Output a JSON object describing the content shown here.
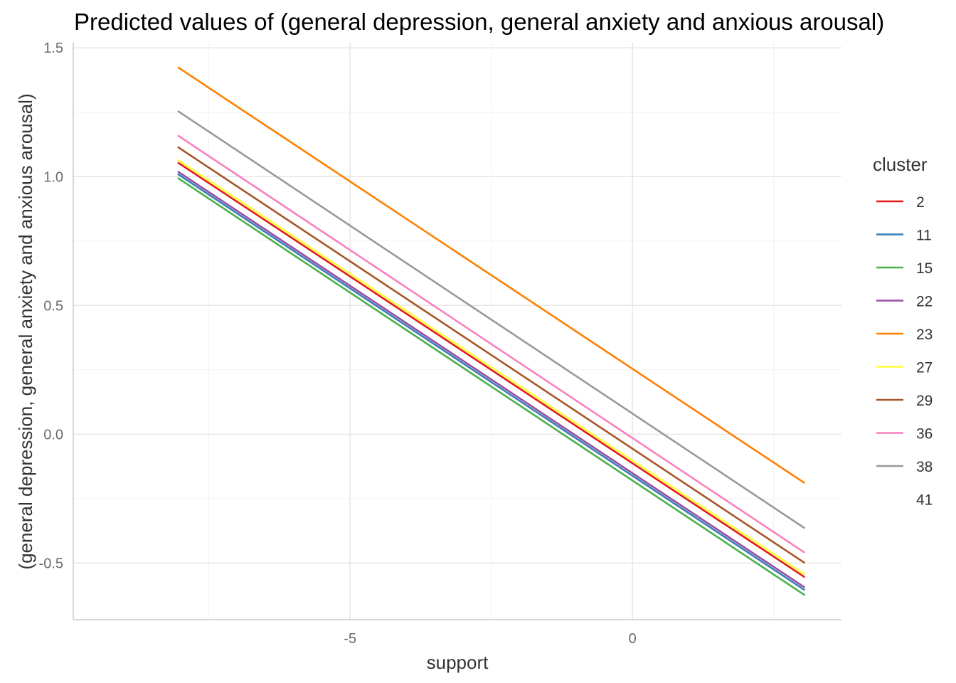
{
  "chart_data": {
    "type": "line",
    "title": "Predicted values of (general depression, general anxiety and anxious arousal)",
    "xlabel": "support",
    "ylabel": "(general depression, general anxiety and anxious arousal)",
    "xlim": [
      -9.9,
      3.7
    ],
    "ylim": [
      -0.72,
      1.52
    ],
    "x_ticks": [
      -5,
      0
    ],
    "x_tick_labels": [
      "-5",
      "0"
    ],
    "x_minor_ticks": [
      -7.5,
      -2.5,
      2.5
    ],
    "y_ticks": [
      -0.5,
      0.0,
      0.5,
      1.0,
      1.5
    ],
    "y_tick_labels": [
      "-0.5",
      "0.0",
      "0.5",
      "1.0",
      "1.5"
    ],
    "y_minor_ticks": [
      -0.25,
      0.25,
      0.75,
      1.25
    ],
    "grid": true,
    "legend_title": "cluster",
    "legend_position": "right",
    "series": [
      {
        "name": "2",
        "color": "#E41A1C",
        "x": [
          -8.05,
          3.05
        ],
        "y": [
          1.055,
          -0.555
        ]
      },
      {
        "name": "11",
        "color": "#377EB8",
        "x": [
          -8.05,
          3.05
        ],
        "y": [
          1.01,
          -0.605
        ]
      },
      {
        "name": "15",
        "color": "#4DAF4A",
        "x": [
          -8.05,
          3.05
        ],
        "y": [
          0.995,
          -0.625
        ]
      },
      {
        "name": "22",
        "color": "#984EA3",
        "x": [
          -8.05,
          3.05
        ],
        "y": [
          1.02,
          -0.595
        ]
      },
      {
        "name": "23",
        "color": "#FF7F00",
        "x": [
          -8.05,
          3.05
        ],
        "y": [
          1.425,
          -0.19
        ]
      },
      {
        "name": "27",
        "color": "#FFFF33",
        "x": [
          -8.05,
          3.05
        ],
        "y": [
          1.065,
          -0.545
        ]
      },
      {
        "name": "29",
        "color": "#A65628",
        "x": [
          -8.05,
          3.05
        ],
        "y": [
          1.115,
          -0.5
        ]
      },
      {
        "name": "36",
        "color": "#F781BF",
        "x": [
          -8.05,
          3.05
        ],
        "y": [
          1.16,
          -0.46
        ]
      },
      {
        "name": "38",
        "color": "#999999",
        "x": [
          -8.05,
          3.05
        ],
        "y": [
          1.255,
          -0.365
        ]
      },
      {
        "name": "41",
        "color": null,
        "x": [],
        "y": []
      }
    ]
  }
}
